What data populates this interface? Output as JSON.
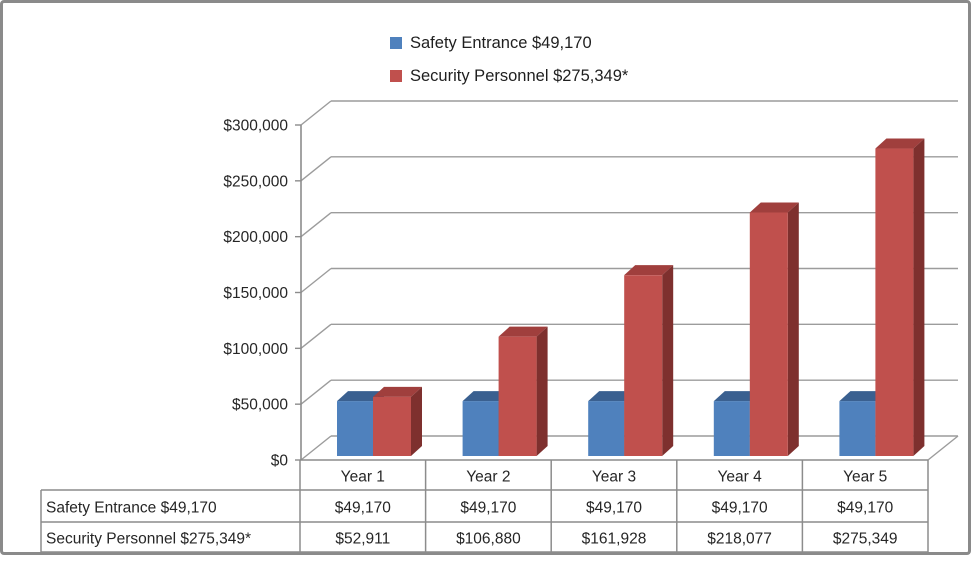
{
  "chart_data": {
    "type": "bar",
    "variant": "3d-clustered-column",
    "title": "",
    "categories": [
      "Year 1",
      "Year 2",
      "Year 3",
      "Year 4",
      "Year 5"
    ],
    "series": [
      {
        "name": "Safety Entrance $49,170",
        "color": "#4F81BD",
        "values": [
          49170,
          49170,
          49170,
          49170,
          49170
        ],
        "formatted": [
          "$49,170",
          "$49,170",
          "$49,170",
          "$49,170",
          "$49,170"
        ]
      },
      {
        "name": "Security Personnel $275,349*",
        "color": "#C0504D",
        "values": [
          52911,
          106880,
          161928,
          218077,
          275349
        ],
        "formatted": [
          "$52,911",
          "$106,880",
          "$161,928",
          "$218,077",
          "$275,349"
        ]
      }
    ],
    "ylim": [
      0,
      300000
    ],
    "y_tick_step": 50000,
    "y_tick_labels": [
      "$0",
      "$50,000",
      "$100,000",
      "$150,000",
      "$200,000",
      "$250,000",
      "$300,000"
    ],
    "xlabel": "",
    "ylabel": "",
    "grid": true,
    "legend_position": "top-center",
    "data_table_shown": true,
    "line_color": "#8C8C8C",
    "grid_color": "#9C9C9C",
    "text_color": "#262626"
  }
}
